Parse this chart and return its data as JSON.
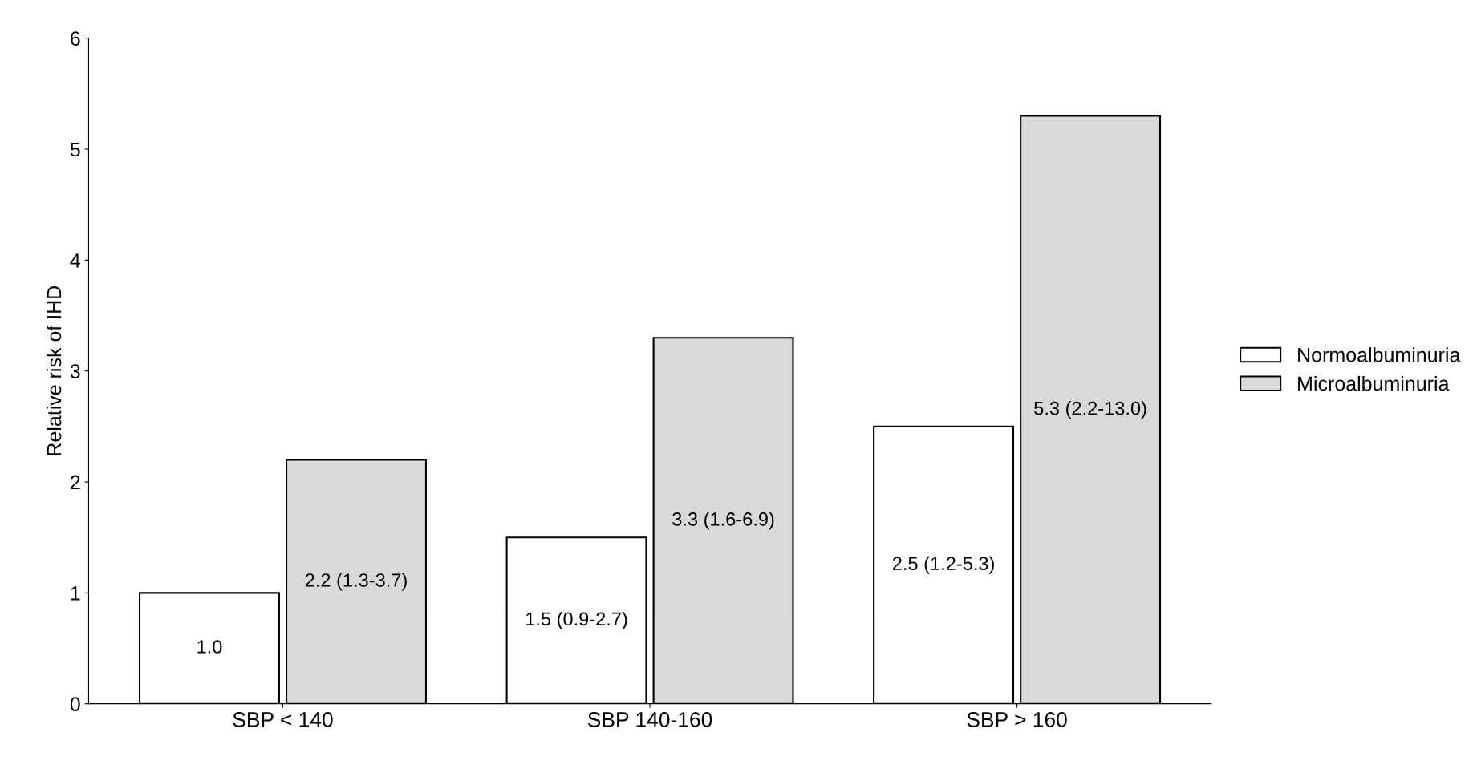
{
  "chart_data": {
    "type": "bar",
    "ylabel": "Relative risk of IHD",
    "categories": [
      "SBP < 140",
      "SBP 140-160",
      "SBP > 160"
    ],
    "series": [
      {
        "name": "Normoalbuminuria",
        "color": "#ffffff",
        "values": [
          1.0,
          1.5,
          2.5
        ],
        "value_labels": [
          "1.0",
          "1.5 (0.9-2.7)",
          "2.5 (1.2-5.3)"
        ]
      },
      {
        "name": "Microalbuminuria",
        "color": "#d9d9d9",
        "values": [
          2.2,
          3.3,
          5.3
        ],
        "value_labels": [
          "2.2 (1.3-3.7)",
          "3.3 (1.6-6.9)",
          "5.3 (2.2-13.0)"
        ]
      }
    ],
    "ylim": [
      0,
      6
    ],
    "yticks": [
      0,
      1,
      2,
      3,
      4,
      5,
      6
    ],
    "grid": false,
    "legend": "right"
  }
}
